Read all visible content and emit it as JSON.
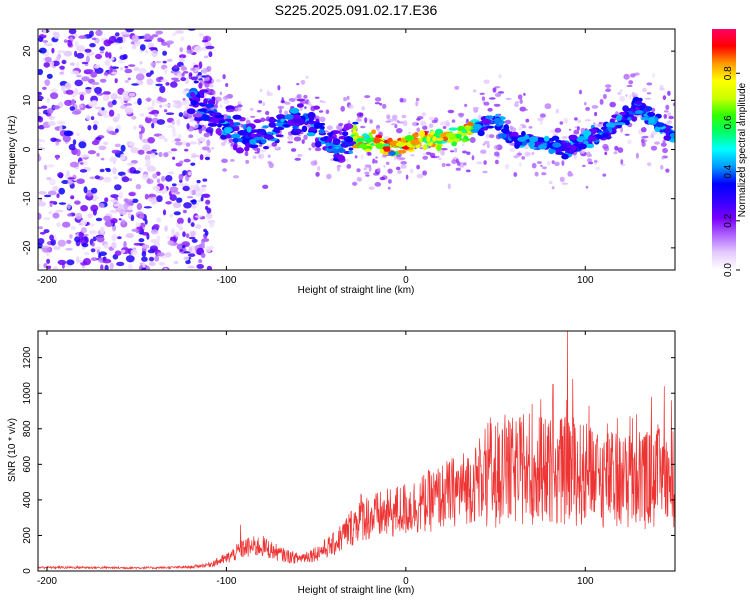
{
  "title": "S225.2025.091.02.17.E36",
  "chart_data": [
    {
      "type": "heatmap",
      "xlabel": "Height of straight line (km)",
      "ylabel": "Frequency (Hz)",
      "xlim": [
        -205,
        150
      ],
      "ylim": [
        -24.5,
        24.5
      ],
      "xticks": [
        -200,
        -100,
        0,
        100
      ],
      "yticks": [
        -20,
        -10,
        0,
        10,
        20
      ],
      "grid": false,
      "colorbar": {
        "label": "Normalized spectral amplitude",
        "range": [
          0,
          0.98
        ],
        "ticks": [
          0.0,
          0.2,
          0.4,
          0.6,
          0.8
        ],
        "tick_labels": [
          "0.0",
          "0.2",
          "0.4",
          "0.6",
          "0.8"
        ],
        "colormap": [
          "#ffffff",
          "#e6ccff",
          "#b066ff",
          "#7a00ff",
          "#3300ff",
          "#0000ff",
          "#0099ff",
          "#00ffff",
          "#00ff66",
          "#33ff00",
          "#ccff00",
          "#ffff00",
          "#ff9900",
          "#ff0000",
          "#ff0066"
        ]
      },
      "ridge": {
        "x": [
          -120,
          -110,
          -100,
          -90,
          -80,
          -70,
          -60,
          -50,
          -40,
          -30,
          -20,
          -10,
          0,
          10,
          20,
          30,
          40,
          50,
          60,
          70,
          80,
          90,
          100,
          110,
          120,
          130,
          140,
          150
        ],
        "frequency": [
          11,
          8,
          5,
          3,
          2,
          5,
          6,
          5,
          0,
          2,
          2,
          1,
          1,
          2,
          2,
          3,
          5,
          6,
          2,
          2,
          1,
          0,
          2,
          3,
          6,
          9,
          5,
          3
        ]
      }
    },
    {
      "type": "line",
      "xlabel": "Height of straight line (km)",
      "ylabel": "SNR (10 * v/v)",
      "xlim": [
        -205,
        150
      ],
      "ylim": [
        0,
        1350
      ],
      "xticks": [
        -200,
        -100,
        0,
        100
      ],
      "yticks": [
        0,
        200,
        400,
        600,
        800,
        1000,
        1200
      ],
      "grid": false,
      "color": "#ee3333",
      "envelope": {
        "x": [
          -205,
          -180,
          -160,
          -140,
          -120,
          -110,
          -100,
          -90,
          -80,
          -70,
          -60,
          -50,
          -40,
          -30,
          -25,
          -20,
          -10,
          0,
          10,
          20,
          30,
          40,
          50,
          60,
          70,
          80,
          90,
          100,
          110,
          120,
          130,
          140,
          150
        ],
        "y": [
          20,
          20,
          18,
          18,
          22,
          35,
          70,
          130,
          140,
          95,
          70,
          100,
          150,
          250,
          310,
          300,
          320,
          350,
          380,
          420,
          460,
          500,
          540,
          560,
          560,
          560,
          560,
          540,
          520,
          500,
          510,
          520,
          530
        ]
      },
      "spikes": [
        {
          "x": -92,
          "y": 260
        },
        {
          "x": -22,
          "y": 380
        },
        {
          "x": 55,
          "y": 800
        },
        {
          "x": 82,
          "y": 1050
        },
        {
          "x": 90,
          "y": 1360
        },
        {
          "x": 93,
          "y": 1080
        },
        {
          "x": 102,
          "y": 930
        },
        {
          "x": 125,
          "y": 870
        },
        {
          "x": 137,
          "y": 980
        },
        {
          "x": 144,
          "y": 1040
        },
        {
          "x": 148,
          "y": 960
        }
      ]
    }
  ]
}
